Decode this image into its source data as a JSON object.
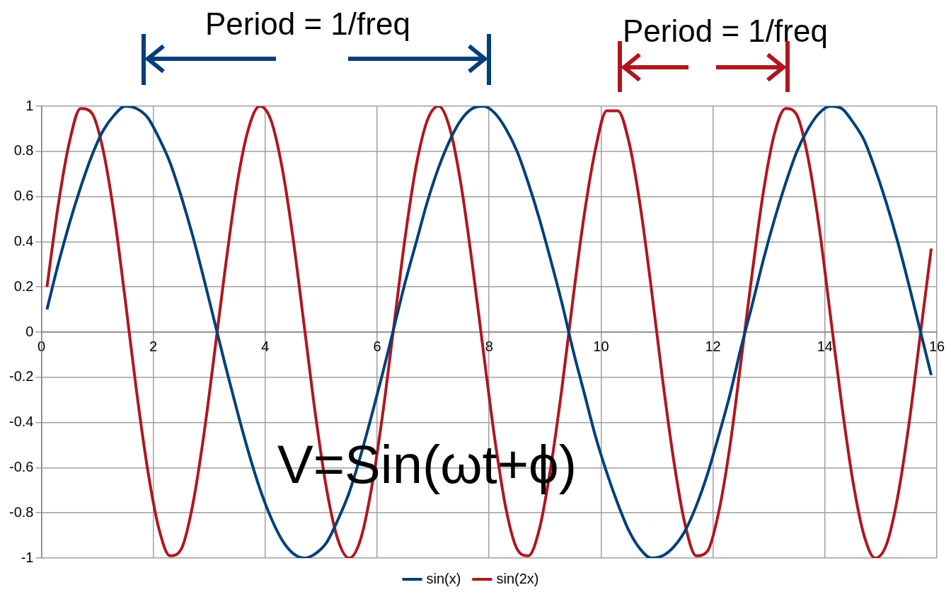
{
  "chart_data": {
    "type": "line",
    "x": [
      0.1,
      0.3,
      0.5,
      0.7,
      0.9,
      1.1,
      1.3,
      1.5,
      1.7,
      1.9,
      2.1,
      2.3,
      2.5,
      2.7,
      2.9,
      3.1,
      3.3,
      3.5,
      3.7,
      3.9,
      4.1,
      4.3,
      4.5,
      4.7,
      4.9,
      5.1,
      5.3,
      5.5,
      5.7,
      5.9,
      6.1,
      6.3,
      6.5,
      6.7,
      6.9,
      7.1,
      7.3,
      7.5,
      7.7,
      7.9,
      8.1,
      8.3,
      8.5,
      8.7,
      8.9,
      9.1,
      9.3,
      9.5,
      9.7,
      9.9,
      10.1,
      10.3,
      10.5,
      10.7,
      10.9,
      11.1,
      11.3,
      11.5,
      11.7,
      11.9,
      12.1,
      12.3,
      12.5,
      12.7,
      12.9,
      13.1,
      13.3,
      13.5,
      13.7,
      13.9,
      14.1,
      14.3,
      14.5,
      14.7,
      14.9,
      15.1,
      15.3,
      15.5,
      15.7,
      15.9
    ],
    "series": [
      {
        "name": "sin(x)",
        "color": "#003f7a",
        "values": [
          0.1,
          0.3,
          0.48,
          0.64,
          0.78,
          0.89,
          0.96,
          1.0,
          0.99,
          0.95,
          0.86,
          0.75,
          0.6,
          0.43,
          0.24,
          0.04,
          -0.16,
          -0.35,
          -0.53,
          -0.69,
          -0.82,
          -0.92,
          -0.98,
          -1.0,
          -0.98,
          -0.93,
          -0.83,
          -0.71,
          -0.55,
          -0.37,
          -0.18,
          0.02,
          0.22,
          0.4,
          0.58,
          0.73,
          0.85,
          0.94,
          0.99,
          1.0,
          0.97,
          0.9,
          0.8,
          0.66,
          0.5,
          0.32,
          0.13,
          -0.08,
          -0.27,
          -0.46,
          -0.62,
          -0.76,
          -0.88,
          -0.96,
          -1.0,
          -0.99,
          -0.95,
          -0.88,
          -0.77,
          -0.63,
          -0.46,
          -0.28,
          -0.07,
          0.12,
          0.32,
          0.5,
          0.66,
          0.8,
          0.9,
          0.97,
          1.0,
          0.99,
          0.93,
          0.85,
          0.72,
          0.57,
          0.4,
          0.21,
          0.01,
          -0.19
        ]
      },
      {
        "name": "sin(2x)",
        "color": "#b0161e",
        "values": [
          0.2,
          0.56,
          0.84,
          0.99,
          0.97,
          0.81,
          0.52,
          0.14,
          -0.26,
          -0.61,
          -0.87,
          -0.99,
          -0.96,
          -0.77,
          -0.46,
          -0.08,
          0.31,
          0.66,
          0.9,
          1.0,
          0.94,
          0.73,
          0.41,
          0.02,
          -0.37,
          -0.7,
          -0.92,
          -1.0,
          -0.92,
          -0.69,
          -0.36,
          0.03,
          0.42,
          0.74,
          0.94,
          1.0,
          0.9,
          0.65,
          0.3,
          -0.09,
          -0.47,
          -0.78,
          -0.96,
          -0.99,
          -0.87,
          -0.6,
          -0.25,
          0.15,
          0.52,
          0.81,
          0.98,
          0.98,
          0.84,
          0.56,
          0.19,
          -0.21,
          -0.57,
          -0.85,
          -0.99,
          -0.97,
          -0.8,
          -0.51,
          -0.13,
          0.26,
          0.62,
          0.88,
          0.99,
          0.96,
          0.77,
          0.46,
          0.07,
          -0.32,
          -0.66,
          -0.9,
          -1.0,
          -0.94,
          -0.73,
          -0.41,
          -0.02,
          0.37
        ]
      }
    ],
    "xlim": [
      0,
      16
    ],
    "xticks": [
      0,
      2,
      4,
      6,
      8,
      10,
      12,
      14,
      16
    ],
    "ylim": [
      -1,
      1
    ],
    "yticks": [
      -1,
      -0.8,
      -0.6,
      -0.4,
      -0.2,
      0,
      0.2,
      0.4,
      0.6,
      0.8,
      1
    ],
    "grid": true,
    "legend": "bottom",
    "marker": "none",
    "line_style": "solid",
    "annotations": [
      "Period = 1/freq",
      "Period = 1/freq",
      "V=Sin(ωt+ϕ)"
    ]
  }
}
